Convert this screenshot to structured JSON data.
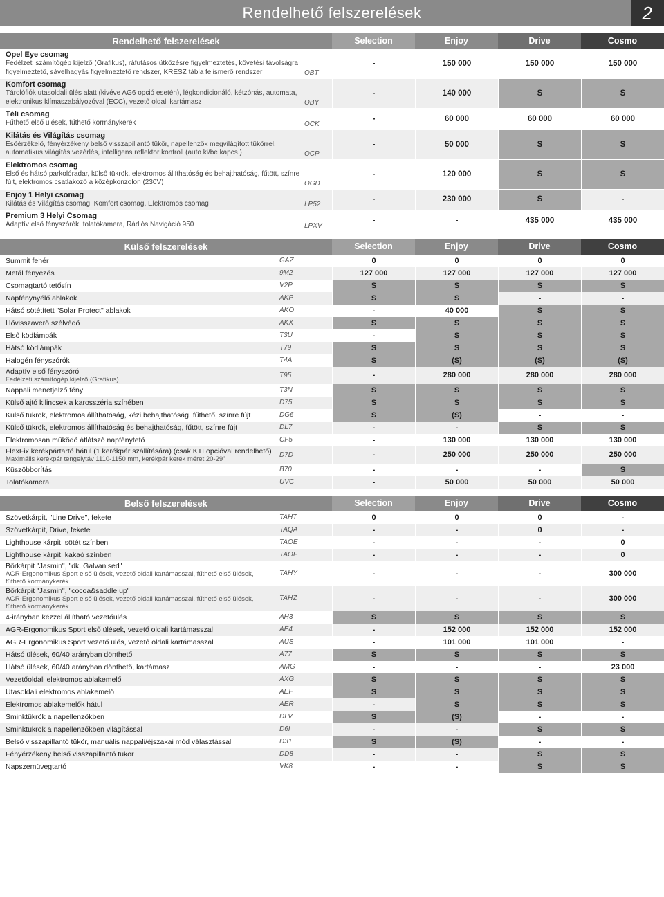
{
  "pageTitle": "Rendelhető felszerelések",
  "pageNumber": "2",
  "colHeadColors": [
    "#a0a0a0",
    "#8a8a8a",
    "#707070",
    "#404040"
  ],
  "table1": {
    "title": "Rendelhető felszerelések",
    "columns": [
      "Selection",
      "Enjoy",
      "Drive",
      "Cosmo"
    ],
    "rows": [
      {
        "title": "Opel Eye csomag",
        "desc": "Fedélzeti számítógép kijelző (Grafikus), ráfutásos ütközésre figyelmeztetés, követési távolságra figyelmeztető, sávelhagyás figyelmeztető rendszer, KRESZ tábla felismerő rendszer",
        "code": "OBT",
        "cells": [
          "-",
          "150 000",
          "150 000",
          "150 000"
        ],
        "shade": [
          false,
          false,
          false,
          false
        ]
      },
      {
        "title": "Komfort csomag",
        "desc": "Tárolófiók utasoldali ülés alatt (kivéve AG6 opció esetén), légkondicionáló, kétzónás, automata, elektronikus klímaszabályozóval (ECC), vezető oldali kartámasz",
        "code": "OBY",
        "cells": [
          "-",
          "140 000",
          "S",
          "S"
        ],
        "shade": [
          false,
          false,
          true,
          true
        ]
      },
      {
        "title": "Téli csomag",
        "desc": "Fűthető első ülések, fűthető kormánykerék",
        "code": "OCK",
        "cells": [
          "-",
          "60 000",
          "60 000",
          "60 000"
        ],
        "shade": [
          false,
          false,
          false,
          false
        ]
      },
      {
        "title": "Kilátás és Világítás csomag",
        "desc": "Esőérzékelő, fényérzékeny belső visszapillantó tükör, napellenzők megvilágított tükörrel, automatikus világítás vezérlés, intelligens reflektor kontroll (auto ki/be kapcs.)",
        "code": "OCP",
        "cells": [
          "-",
          "50 000",
          "S",
          "S"
        ],
        "shade": [
          false,
          false,
          true,
          true
        ]
      },
      {
        "title": "Elektromos csomag",
        "desc": "Első és hátsó parkolóradar, külső tükrök, elektromos állíthatóság és behajthatóság, fűtött, színre fújt, elektromos csatlakozó a középkonzolon (230V)",
        "code": "OGD",
        "cells": [
          "-",
          "120 000",
          "S",
          "S"
        ],
        "shade": [
          false,
          false,
          true,
          true
        ]
      },
      {
        "title": "Enjoy 1 Helyi csomag",
        "desc": "Kilátás és Világítás csomag, Komfort csomag, Elektromos csomag",
        "code": "LP52",
        "cells": [
          "-",
          "230 000",
          "S",
          "-"
        ],
        "shade": [
          false,
          false,
          true,
          false
        ]
      },
      {
        "title": "Premium 3 Helyi Csomag",
        "desc": "Adaptív első fényszórók, tolatókamera, Rádiós Navigáció 950",
        "code": "LPXV",
        "cells": [
          "-",
          "-",
          "435 000",
          "435 000"
        ],
        "shade": [
          false,
          false,
          false,
          false
        ]
      }
    ]
  },
  "table2": {
    "title": "Külső felszerelések",
    "columns": [
      "Selection",
      "Enjoy",
      "Drive",
      "Cosmo"
    ],
    "rows": [
      {
        "label": "Summit fehér",
        "code": "GAZ",
        "cells": [
          "0",
          "0",
          "0",
          "0"
        ],
        "shade": [
          false,
          false,
          false,
          false
        ]
      },
      {
        "label": "Metál fényezés",
        "code": "9M2",
        "cells": [
          "127 000",
          "127 000",
          "127 000",
          "127 000"
        ],
        "shade": [
          false,
          false,
          false,
          false
        ]
      },
      {
        "label": "Csomagtartó tetősín",
        "code": "V2P",
        "cells": [
          "S",
          "S",
          "S",
          "S"
        ],
        "shade": [
          true,
          true,
          true,
          true
        ]
      },
      {
        "label": "Napfénynyélő ablakok",
        "code": "AKP",
        "cells": [
          "S",
          "S",
          "-",
          "-"
        ],
        "shade": [
          true,
          true,
          false,
          false
        ]
      },
      {
        "label": "Hátsó sötétített \"Solar Protect\" ablakok",
        "code": "AKO",
        "cells": [
          "-",
          "40 000",
          "S",
          "S"
        ],
        "shade": [
          false,
          false,
          true,
          true
        ]
      },
      {
        "label": "Hővisszaverő szélvédő",
        "code": "AKX",
        "cells": [
          "S",
          "S",
          "S",
          "S"
        ],
        "shade": [
          true,
          true,
          true,
          true
        ]
      },
      {
        "label": "Első ködlámpák",
        "code": "T3U",
        "cells": [
          "-",
          "S",
          "S",
          "S"
        ],
        "shade": [
          false,
          true,
          true,
          true
        ]
      },
      {
        "label": "Hátsó ködlámpák",
        "code": "T79",
        "cells": [
          "S",
          "S",
          "S",
          "S"
        ],
        "shade": [
          true,
          true,
          true,
          true
        ]
      },
      {
        "label": "Halogén fényszórók",
        "code": "T4A",
        "cells": [
          "S",
          "(S)",
          "(S)",
          "(S)"
        ],
        "shade": [
          true,
          true,
          true,
          true
        ]
      },
      {
        "label": "Adaptív első fényszóró",
        "sub": "Fedélzeti számítógép kijelző (Grafikus)",
        "code": "T95",
        "cells": [
          "-",
          "280 000",
          "280 000",
          "280 000"
        ],
        "shade": [
          false,
          false,
          false,
          false
        ]
      },
      {
        "label": "Nappali menetjelző fény",
        "code": "T3N",
        "cells": [
          "S",
          "S",
          "S",
          "S"
        ],
        "shade": [
          true,
          true,
          true,
          true
        ]
      },
      {
        "label": "Külső ajtó kilincsek a karosszéria színében",
        "code": "D75",
        "cells": [
          "S",
          "S",
          "S",
          "S"
        ],
        "shade": [
          true,
          true,
          true,
          true
        ]
      },
      {
        "label": "Külső tükrök, elektromos állíthatóság, kézi behajthatóság, fűthető, színre fújt",
        "code": "DG6",
        "cells": [
          "S",
          "(S)",
          "-",
          "-"
        ],
        "shade": [
          true,
          true,
          false,
          false
        ]
      },
      {
        "label": "Külső tükrök, elektromos állíthatóság és behajthatóság, fűtött, színre fújt",
        "code": "DL7",
        "cells": [
          "-",
          "-",
          "S",
          "S"
        ],
        "shade": [
          false,
          false,
          true,
          true
        ]
      },
      {
        "label": "Elektromosan működő átlátszó napfénytető",
        "code": "CF5",
        "cells": [
          "-",
          "130 000",
          "130 000",
          "130 000"
        ],
        "shade": [
          false,
          false,
          false,
          false
        ]
      },
      {
        "label": "FlexFix kerékpártartó hátul (1 kerékpár szállítására)  (csak KTI opcióval rendelhető)",
        "sub": "Maximális kerékpár tengelytáv 1110-1150 mm, kerékpár kerék méret 20-29\"",
        "code": "D7D",
        "cells": [
          "-",
          "250 000",
          "250 000",
          "250 000"
        ],
        "shade": [
          false,
          false,
          false,
          false
        ]
      },
      {
        "label": "Küszöbborítás",
        "code": "B70",
        "cells": [
          "-",
          "-",
          "-",
          "S"
        ],
        "shade": [
          false,
          false,
          false,
          true
        ]
      },
      {
        "label": "Tolatókamera",
        "code": "UVC",
        "cells": [
          "-",
          "50 000",
          "50 000",
          "50 000"
        ],
        "shade": [
          false,
          false,
          false,
          false
        ]
      }
    ]
  },
  "table3": {
    "title": "Belső felszerelések",
    "columns": [
      "Selection",
      "Enjoy",
      "Drive",
      "Cosmo"
    ],
    "rows": [
      {
        "label": "Szövetkárpit, \"Line Drive\", fekete",
        "code": "TAHT",
        "cells": [
          "0",
          "0",
          "0",
          "-"
        ],
        "shade": [
          false,
          false,
          false,
          false
        ]
      },
      {
        "label": "Szövetkárpit, Drive, fekete",
        "code": "TAQA",
        "cells": [
          "-",
          "-",
          "0",
          "-"
        ],
        "shade": [
          false,
          false,
          false,
          false
        ]
      },
      {
        "label": "Lighthouse kárpit, sötét színben",
        "code": "TAOE",
        "cells": [
          "-",
          "-",
          "-",
          "0"
        ],
        "shade": [
          false,
          false,
          false,
          false
        ]
      },
      {
        "label": "Lighthouse kárpit, kakaó színben",
        "code": "TAOF",
        "cells": [
          "-",
          "-",
          "-",
          "0"
        ],
        "shade": [
          false,
          false,
          false,
          false
        ]
      },
      {
        "label": "Bőrkárpit \"Jasmin\", \"dk. Galvanised\"",
        "sub": "AGR-Ergonomikus Sport első ülések, vezető oldali kartámasszal, fűthető első ülések, fűthető kormánykerék",
        "code": "TAHY",
        "cells": [
          "-",
          "-",
          "-",
          "300 000"
        ],
        "shade": [
          false,
          false,
          false,
          false
        ]
      },
      {
        "label": "Bőrkárpit \"Jasmin\", \"cocoa&saddle up\"",
        "sub": "AGR-Ergonomikus Sport első ülések, vezető oldali kartámasszal, fűthető első ülések, fűthető kormánykerék",
        "code": "TAHZ",
        "cells": [
          "-",
          "-",
          "-",
          "300 000"
        ],
        "shade": [
          false,
          false,
          false,
          false
        ]
      },
      {
        "label": "4-irányban kézzel állítható vezetőülés",
        "code": "AH3",
        "cells": [
          "S",
          "S",
          "S",
          "S"
        ],
        "shade": [
          true,
          true,
          true,
          true
        ]
      },
      {
        "label": "AGR-Ergonomikus Sport első ülések, vezető oldali kartámasszal",
        "code": "AE4",
        "cells": [
          "-",
          "152 000",
          "152 000",
          "152 000"
        ],
        "shade": [
          false,
          false,
          false,
          false
        ]
      },
      {
        "label": "AGR-Ergonomikus Sport vezető ülés, vezető oldali kartámasszal",
        "code": "AUS",
        "cells": [
          "-",
          "101 000",
          "101 000",
          "-"
        ],
        "shade": [
          false,
          false,
          false,
          false
        ]
      },
      {
        "label": "Hátsó ülések, 60/40 arányban dönthető",
        "code": "A77",
        "cells": [
          "S",
          "S",
          "S",
          "S"
        ],
        "shade": [
          true,
          true,
          true,
          true
        ]
      },
      {
        "label": "Hátsó ülések, 60/40 arányban dönthető, kartámasz",
        "code": "AMG",
        "cells": [
          "-",
          "-",
          "-",
          "23 000"
        ],
        "shade": [
          false,
          false,
          false,
          false
        ]
      },
      {
        "label": "Vezetőoldali elektromos ablakemelő",
        "code": "AXG",
        "cells": [
          "S",
          "S",
          "S",
          "S"
        ],
        "shade": [
          true,
          true,
          true,
          true
        ]
      },
      {
        "label": "Utasoldali elektromos ablakemelő",
        "code": "AEF",
        "cells": [
          "S",
          "S",
          "S",
          "S"
        ],
        "shade": [
          true,
          true,
          true,
          true
        ]
      },
      {
        "label": "Elektromos ablakemelők hátul",
        "code": "AER",
        "cells": [
          "-",
          "S",
          "S",
          "S"
        ],
        "shade": [
          false,
          true,
          true,
          true
        ]
      },
      {
        "label": "Sminktükrök a napellenzőkben",
        "code": "DLV",
        "cells": [
          "S",
          "(S)",
          "-",
          "-"
        ],
        "shade": [
          true,
          true,
          false,
          false
        ]
      },
      {
        "label": "Sminktükrök a napellenzőkben világítással",
        "code": "D6I",
        "cells": [
          "-",
          "-",
          "S",
          "S"
        ],
        "shade": [
          false,
          false,
          true,
          true
        ]
      },
      {
        "label": "Belső visszapillantó tükör, manuális nappali/éjszakai mód választással",
        "code": "D31",
        "cells": [
          "S",
          "(S)",
          "-",
          "-"
        ],
        "shade": [
          true,
          true,
          false,
          false
        ]
      },
      {
        "label": "Fényérzékeny belső visszapillantó tükör",
        "code": "DD8",
        "cells": [
          "-",
          "-",
          "S",
          "S"
        ],
        "shade": [
          false,
          false,
          true,
          true
        ]
      },
      {
        "label": "Napszemüvegtartó",
        "code": "VK8",
        "cells": [
          "-",
          "-",
          "S",
          "S"
        ],
        "shade": [
          false,
          false,
          true,
          true
        ]
      }
    ]
  }
}
